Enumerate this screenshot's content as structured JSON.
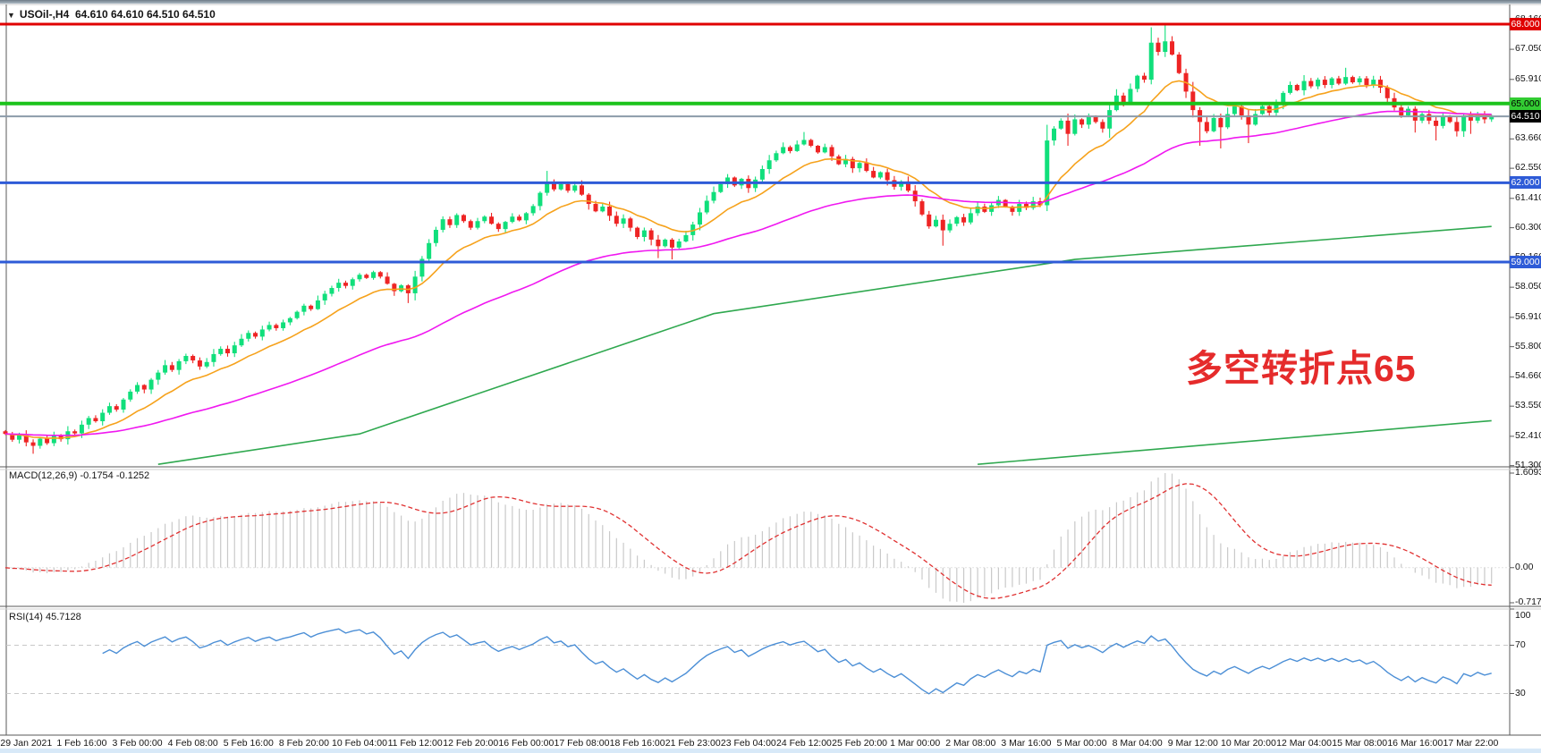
{
  "header": {
    "dropdown_icon": "▼",
    "symbol_period": "USOil-,H4",
    "ohlc": "64.610 64.610 64.510 64.510"
  },
  "annotation": {
    "text": "多空转折点65",
    "color": "#e52b2b"
  },
  "price_axis": {
    "ticks": [
      "68.160",
      "67.050",
      "65.910",
      "64.800",
      "63.660",
      "62.550",
      "61.410",
      "60.300",
      "59.160",
      "58.050",
      "56.910",
      "55.800",
      "54.660",
      "53.550",
      "52.410",
      "51.300"
    ]
  },
  "levels": [
    {
      "label": "68.000",
      "value": 68.0,
      "line_color": "#e00000",
      "line_width": 3,
      "badge_bg": "#e00000",
      "badge_fg": "#ffffff"
    },
    {
      "label": "65.000",
      "value": 65.0,
      "line_color": "#1cc31c",
      "line_width": 4,
      "badge_bg": "#33cc33",
      "badge_fg": "#000000"
    },
    {
      "label": "62.000",
      "value": 62.0,
      "line_color": "#2e5bd7",
      "line_width": 3,
      "badge_bg": "#2e5bd7",
      "badge_fg": "#ffffff"
    },
    {
      "label": "59.000",
      "value": 59.0,
      "line_color": "#2e5bd7",
      "line_width": 3,
      "badge_bg": "#2e5bd7",
      "badge_fg": "#ffffff"
    },
    {
      "label": "64.510",
      "value": 64.51,
      "line_color": "#8c9baa",
      "line_width": 2,
      "badge_bg": "#000000",
      "badge_fg": "#ffffff"
    }
  ],
  "time_axis": {
    "labels": [
      "29 Jan 2021",
      "1 Feb 16:00",
      "3 Feb 00:00",
      "4 Feb 08:00",
      "5 Feb 16:00",
      "8 Feb 20:00",
      "10 Feb 04:00",
      "11 Feb 12:00",
      "12 Feb 20:00",
      "16 Feb 00:00",
      "17 Feb 08:00",
      "18 Feb 16:00",
      "21 Feb 23:00",
      "23 Feb 04:00",
      "24 Feb 12:00",
      "25 Feb 20:00",
      "1 Mar 00:00",
      "2 Mar 08:00",
      "3 Mar 16:00",
      "5 Mar 00:00",
      "8 Mar 04:00",
      "9 Mar 12:00",
      "10 Mar 20:00",
      "12 Mar 04:00",
      "15 Mar 08:00",
      "16 Mar 16:00",
      "17 Mar 22:00"
    ]
  },
  "panes": {
    "macd": {
      "name": "MACD(12,26,9)",
      "value_main": "-0.1754",
      "value_signal": "-0.1252",
      "axis_max": "1.6093",
      "axis_zero": "0.00",
      "axis_min": "-0.7172"
    },
    "rsi": {
      "name": "RSI(14)",
      "value": "45.7128",
      "axis_top": "100",
      "axis_upper": "70",
      "axis_lower": "30"
    }
  },
  "chart_data": {
    "type": "candlestick",
    "symbol": "USOil-",
    "period": "H4",
    "title": "USOil-,H4 64.610 64.610 64.510 64.510",
    "visible_price_range": [
      51.3,
      68.16
    ],
    "first_open": 52.6,
    "closes": [
      52.5,
      52.28,
      52.45,
      52.18,
      52.05,
      52.32,
      52.15,
      52.42,
      52.3,
      52.6,
      52.52,
      52.85,
      53.1,
      52.98,
      53.3,
      53.55,
      53.42,
      53.8,
      54.1,
      54.35,
      54.18,
      54.55,
      54.82,
      55.1,
      54.92,
      55.25,
      55.45,
      55.28,
      55.05,
      55.22,
      55.52,
      55.72,
      55.55,
      55.85,
      56.1,
      56.32,
      56.18,
      56.45,
      56.62,
      56.5,
      56.72,
      56.88,
      57.12,
      57.35,
      57.22,
      57.55,
      57.8,
      58.02,
      58.22,
      58.1,
      58.35,
      58.52,
      58.4,
      58.62,
      58.45,
      58.18,
      57.9,
      58.12,
      57.82,
      58.45,
      59.12,
      59.72,
      60.22,
      60.62,
      60.4,
      60.78,
      60.55,
      60.3,
      60.55,
      60.72,
      60.45,
      60.25,
      60.52,
      60.72,
      60.58,
      60.85,
      61.12,
      61.62,
      62.02,
      61.75,
      61.95,
      61.7,
      61.9,
      61.55,
      61.2,
      60.92,
      61.1,
      60.75,
      60.45,
      60.65,
      60.3,
      59.95,
      60.2,
      59.85,
      59.6,
      59.85,
      59.55,
      59.78,
      60.02,
      60.42,
      60.88,
      61.32,
      61.65,
      61.95,
      62.2,
      61.9,
      62.15,
      61.8,
      62.12,
      62.52,
      62.85,
      63.12,
      63.35,
      63.2,
      63.45,
      63.62,
      63.4,
      63.15,
      63.35,
      63.0,
      62.7,
      62.9,
      62.55,
      62.75,
      62.45,
      62.2,
      62.4,
      62.1,
      61.85,
      62.05,
      61.7,
      61.3,
      60.8,
      60.35,
      60.6,
      60.2,
      60.45,
      60.7,
      60.5,
      60.85,
      61.1,
      60.9,
      61.15,
      61.35,
      61.1,
      60.9,
      61.2,
      61.05,
      61.3,
      61.15,
      63.6,
      64.05,
      64.35,
      63.85,
      64.4,
      64.2,
      64.5,
      64.3,
      64.05,
      64.75,
      65.3,
      65.05,
      65.55,
      66.05,
      65.9,
      67.3,
      66.95,
      67.35,
      66.85,
      66.15,
      65.45,
      64.75,
      64.3,
      63.95,
      64.45,
      64.1,
      64.6,
      64.9,
      64.55,
      64.2,
      64.6,
      64.9,
      64.65,
      65.0,
      65.4,
      65.7,
      65.5,
      65.85,
      65.65,
      65.9,
      65.7,
      65.95,
      65.75,
      66.0,
      65.8,
      65.95,
      65.7,
      65.9,
      65.6,
      65.2,
      64.85,
      64.55,
      64.8,
      64.35,
      64.6,
      64.35,
      64.15,
      64.5,
      64.3,
      63.95,
      64.55,
      64.35,
      64.6,
      64.4,
      64.51
    ],
    "wick_overrides": {
      "4": {
        "low": 51.75
      },
      "58": {
        "low": 57.45
      },
      "78": {
        "high": 62.45
      },
      "94": {
        "low": 59.15
      },
      "96": {
        "low": 59.1
      },
      "115": {
        "high": 63.92
      },
      "135": {
        "low": 59.62
      },
      "153": {
        "low": 63.4
      },
      "167": {
        "high": 67.98
      },
      "172": {
        "low": 63.4
      },
      "175": {
        "low": 63.3
      },
      "179": {
        "low": 63.5
      },
      "193": {
        "high": 66.35
      },
      "203": {
        "low": 63.9
      },
      "206": {
        "low": 63.6
      },
      "211": {
        "low": 63.85
      }
    },
    "colors": {
      "up": "#10df7b",
      "down": "#ee2424",
      "ema_fast": "#f6a21c",
      "ema_slow": "#f018f0",
      "trend": "#2fa84f",
      "macd_histogram": "#c9c9c9",
      "macd_signal": "#e03131",
      "rsi_line": "#4c8fd6",
      "rsi_levels": "#c8c8c8",
      "current_price_line": "#8c9baa"
    },
    "moving_averages": [
      {
        "name": "ema-fast",
        "period": 13,
        "color": "#f6a21c"
      },
      {
        "name": "ema-slow",
        "period": 55,
        "color": "#f018f0"
      }
    ],
    "trend_lines": [
      {
        "name": "long-trend-main",
        "color": "#2fa84f",
        "points": [
          [
            22,
            51.35
          ],
          [
            51,
            52.5
          ],
          [
            102,
            57.05
          ],
          [
            154,
            59.1
          ],
          [
            214,
            60.35
          ]
        ]
      },
      {
        "name": "long-trend-lower",
        "color": "#2fa84f",
        "points": [
          [
            140,
            51.35
          ],
          [
            214,
            53.0
          ]
        ]
      }
    ],
    "macd": {
      "fast": 12,
      "slow": 26,
      "signal": 9,
      "current_main": -0.1754,
      "current_signal": -0.1252,
      "axis": [
        1.6093,
        0.0,
        -0.7172
      ]
    },
    "rsi": {
      "period": 14,
      "current": 45.7128,
      "levels": [
        70,
        30
      ],
      "range": [
        0,
        100
      ]
    }
  }
}
